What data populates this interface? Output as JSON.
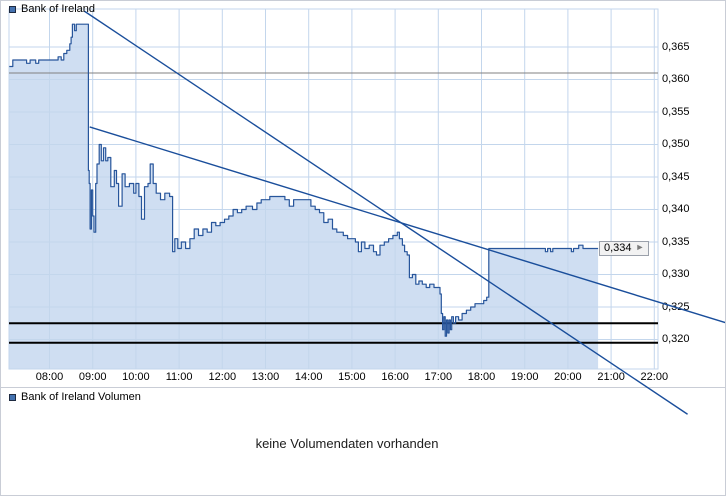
{
  "price_panel": {
    "legend": "Bank of Ireland",
    "last_price_label": "0,334",
    "y_axis_labels": [
      "0,365",
      "0,360",
      "0,355",
      "0,350",
      "0,345",
      "0,340",
      "0,335",
      "0,330",
      "0,325",
      "0,320"
    ],
    "x_axis_labels": [
      "08:00",
      "09:00",
      "10:00",
      "11:00",
      "12:00",
      "13:00",
      "14:00",
      "15:00",
      "16:00",
      "17:00",
      "18:00",
      "19:00",
      "20:00",
      "21:00",
      "22:00"
    ]
  },
  "volume_panel": {
    "legend": "Bank of Ireland Volumen",
    "message": "keine Volumendaten vorhanden"
  },
  "icons": {
    "price_arrow": "►"
  },
  "colors": {
    "price_line": "#27559b",
    "area_fill": "#cfdef2",
    "grid": "#c3d6ec",
    "trend_line": "#1a4e9b",
    "support_line": "#000000",
    "reference_line": "#808080",
    "legend_swatch": "#4472b0",
    "tag_background": "#f2f2f2"
  },
  "chart_data": {
    "type": "area",
    "title": "Bank of Ireland intraday price",
    "x_unit": "hour of day",
    "y_unit": "EUR",
    "grid": true,
    "legend_position": "top-left",
    "xlim": [
      7.06,
      22.09
    ],
    "ylim": [
      0.3155,
      0.3708
    ],
    "x_axis_ticks": [
      8,
      9,
      10,
      11,
      12,
      13,
      14,
      15,
      16,
      17,
      18,
      19,
      20,
      21,
      22
    ],
    "y_axis_ticks": [
      0.365,
      0.36,
      0.355,
      0.35,
      0.345,
      0.34,
      0.335,
      0.33,
      0.325,
      0.32
    ],
    "last_price": 0.334,
    "reference_lines": {
      "horizontal_gray_line": 0.361,
      "support_lines": [
        0.3225,
        0.3195
      ]
    },
    "trend_lines": [
      {
        "from": [
          8.81,
          0.3705
        ],
        "to": [
          22.77,
          0.3085
        ]
      },
      {
        "from": [
          8.93,
          0.3527
        ],
        "to": [
          23.69,
          0.3225
        ]
      }
    ],
    "series": [
      {
        "name": "Bank of Ireland",
        "points": [
          [
            7.07,
            0.362
          ],
          [
            7.12,
            0.362
          ],
          [
            7.15,
            0.363
          ],
          [
            7.4,
            0.363
          ],
          [
            7.47,
            0.3625
          ],
          [
            7.55,
            0.363
          ],
          [
            7.68,
            0.3625
          ],
          [
            7.75,
            0.363
          ],
          [
            8.0,
            0.363
          ],
          [
            8.15,
            0.363
          ],
          [
            8.2,
            0.3635
          ],
          [
            8.27,
            0.363
          ],
          [
            8.33,
            0.364
          ],
          [
            8.4,
            0.3645
          ],
          [
            8.47,
            0.3655
          ],
          [
            8.5,
            0.3665
          ],
          [
            8.53,
            0.3685
          ],
          [
            8.58,
            0.3675
          ],
          [
            8.62,
            0.3685
          ],
          [
            8.88,
            0.3685
          ],
          [
            8.9,
            0.346
          ],
          [
            8.92,
            0.344
          ],
          [
            8.94,
            0.337
          ],
          [
            8.97,
            0.343
          ],
          [
            9.0,
            0.339
          ],
          [
            9.03,
            0.3365
          ],
          [
            9.07,
            0.344
          ],
          [
            9.1,
            0.347
          ],
          [
            9.15,
            0.35
          ],
          [
            9.2,
            0.3475
          ],
          [
            9.25,
            0.3495
          ],
          [
            9.3,
            0.3475
          ],
          [
            9.35,
            0.348
          ],
          [
            9.42,
            0.3435
          ],
          [
            9.5,
            0.346
          ],
          [
            9.55,
            0.344
          ],
          [
            9.6,
            0.3405
          ],
          [
            9.68,
            0.3455
          ],
          [
            9.75,
            0.3435
          ],
          [
            9.85,
            0.344
          ],
          [
            9.95,
            0.3425
          ],
          [
            10.0,
            0.344
          ],
          [
            10.07,
            0.342
          ],
          [
            10.13,
            0.3385
          ],
          [
            10.2,
            0.3435
          ],
          [
            10.28,
            0.344
          ],
          [
            10.33,
            0.347
          ],
          [
            10.4,
            0.344
          ],
          [
            10.47,
            0.3425
          ],
          [
            10.57,
            0.3415
          ],
          [
            10.67,
            0.3425
          ],
          [
            10.78,
            0.342
          ],
          [
            10.85,
            0.3335
          ],
          [
            10.9,
            0.3355
          ],
          [
            10.97,
            0.334
          ],
          [
            11.05,
            0.335
          ],
          [
            11.15,
            0.334
          ],
          [
            11.25,
            0.3355
          ],
          [
            11.35,
            0.337
          ],
          [
            11.45,
            0.336
          ],
          [
            11.55,
            0.337
          ],
          [
            11.65,
            0.3365
          ],
          [
            11.75,
            0.338
          ],
          [
            11.85,
            0.3375
          ],
          [
            11.95,
            0.338
          ],
          [
            12.05,
            0.3385
          ],
          [
            12.15,
            0.339
          ],
          [
            12.25,
            0.34
          ],
          [
            12.35,
            0.3395
          ],
          [
            12.45,
            0.34
          ],
          [
            12.55,
            0.3405
          ],
          [
            12.7,
            0.34
          ],
          [
            12.8,
            0.341
          ],
          [
            12.9,
            0.3415
          ],
          [
            13.0,
            0.3415
          ],
          [
            13.1,
            0.342
          ],
          [
            13.3,
            0.342
          ],
          [
            13.45,
            0.3415
          ],
          [
            13.55,
            0.3405
          ],
          [
            13.65,
            0.3415
          ],
          [
            13.8,
            0.3415
          ],
          [
            13.95,
            0.3415
          ],
          [
            14.05,
            0.3405
          ],
          [
            14.15,
            0.34
          ],
          [
            14.25,
            0.3395
          ],
          [
            14.35,
            0.338
          ],
          [
            14.45,
            0.3385
          ],
          [
            14.55,
            0.337
          ],
          [
            14.65,
            0.3365
          ],
          [
            14.8,
            0.336
          ],
          [
            14.9,
            0.3355
          ],
          [
            15.0,
            0.3355
          ],
          [
            15.08,
            0.335
          ],
          [
            15.15,
            0.3335
          ],
          [
            15.22,
            0.335
          ],
          [
            15.3,
            0.334
          ],
          [
            15.4,
            0.3345
          ],
          [
            15.5,
            0.3335
          ],
          [
            15.57,
            0.333
          ],
          [
            15.65,
            0.3345
          ],
          [
            15.75,
            0.335
          ],
          [
            15.85,
            0.3355
          ],
          [
            15.95,
            0.336
          ],
          [
            16.0,
            0.336
          ],
          [
            16.05,
            0.3365
          ],
          [
            16.1,
            0.3355
          ],
          [
            16.17,
            0.3345
          ],
          [
            16.22,
            0.3335
          ],
          [
            16.28,
            0.333
          ],
          [
            16.33,
            0.3295
          ],
          [
            16.4,
            0.33
          ],
          [
            16.48,
            0.3285
          ],
          [
            16.55,
            0.329
          ],
          [
            16.63,
            0.3285
          ],
          [
            16.72,
            0.328
          ],
          [
            16.8,
            0.3285
          ],
          [
            16.9,
            0.328
          ],
          [
            17.0,
            0.328
          ],
          [
            17.04,
            0.327
          ],
          [
            17.07,
            0.324
          ],
          [
            17.1,
            0.3215
          ],
          [
            17.13,
            0.3235
          ],
          [
            17.16,
            0.3205
          ],
          [
            17.19,
            0.323
          ],
          [
            17.22,
            0.321
          ],
          [
            17.25,
            0.323
          ],
          [
            17.28,
            0.3215
          ],
          [
            17.31,
            0.3235
          ],
          [
            17.35,
            0.3225
          ],
          [
            17.4,
            0.3235
          ],
          [
            17.47,
            0.323
          ],
          [
            17.55,
            0.324
          ],
          [
            17.65,
            0.3245
          ],
          [
            17.75,
            0.325
          ],
          [
            17.85,
            0.3255
          ],
          [
            17.95,
            0.3255
          ],
          [
            18.05,
            0.326
          ],
          [
            18.12,
            0.3265
          ],
          [
            18.17,
            0.334
          ],
          [
            18.35,
            0.334
          ],
          [
            18.55,
            0.334
          ],
          [
            18.75,
            0.334
          ],
          [
            18.95,
            0.334
          ],
          [
            19.15,
            0.334
          ],
          [
            19.35,
            0.334
          ],
          [
            19.48,
            0.3335
          ],
          [
            19.53,
            0.334
          ],
          [
            19.6,
            0.3335
          ],
          [
            19.65,
            0.334
          ],
          [
            19.8,
            0.334
          ],
          [
            19.95,
            0.334
          ],
          [
            20.08,
            0.3335
          ],
          [
            20.13,
            0.334
          ],
          [
            20.25,
            0.3345
          ],
          [
            20.35,
            0.334
          ],
          [
            20.55,
            0.334
          ],
          [
            20.7,
            0.334
          ]
        ]
      }
    ]
  }
}
